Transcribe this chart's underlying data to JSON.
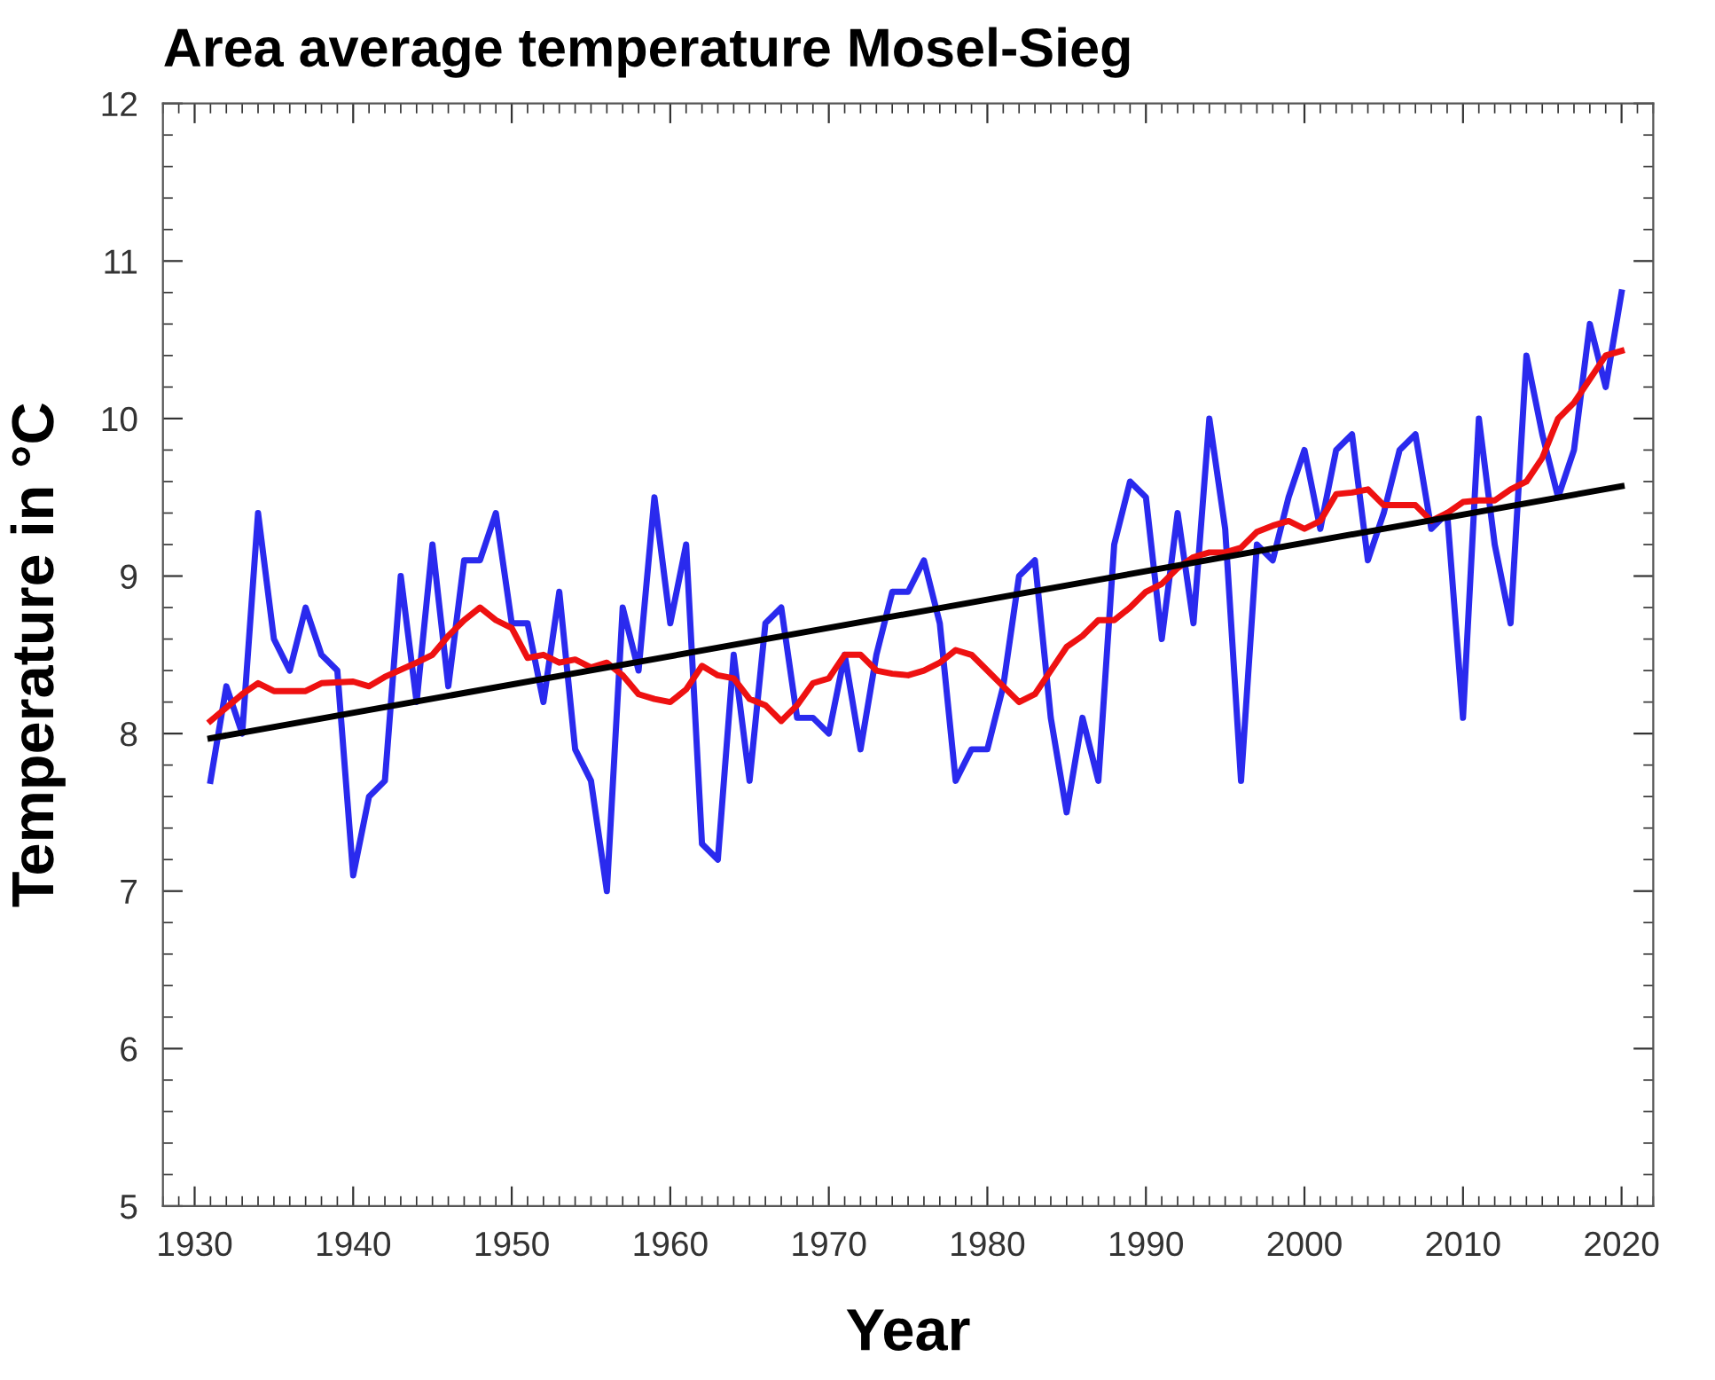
{
  "chart_data": {
    "type": "line",
    "title": "Area average temperature Mosel-Sieg",
    "xlabel": "Year",
    "ylabel": "Temperature in °C",
    "xlim": [
      1928,
      2022
    ],
    "xticks": [
      1930,
      1940,
      1950,
      1960,
      1970,
      1980,
      1990,
      2000,
      2010,
      2020
    ],
    "ylim": [
      5,
      12
    ],
    "yticks": [
      5,
      6,
      7,
      8,
      9,
      10,
      11,
      12
    ],
    "grid": false,
    "legend": false,
    "series": [
      {
        "color": "#2a2aee",
        "x": [
          1931,
          1932,
          1933,
          1934,
          1935,
          1936,
          1937,
          1938,
          1939,
          1940,
          1941,
          1942,
          1943,
          1944,
          1945,
          1946,
          1947,
          1948,
          1949,
          1950,
          1951,
          1952,
          1953,
          1954,
          1955,
          1956,
          1957,
          1958,
          1959,
          1960,
          1961,
          1962,
          1963,
          1964,
          1965,
          1966,
          1967,
          1968,
          1969,
          1970,
          1971,
          1972,
          1973,
          1974,
          1975,
          1976,
          1977,
          1978,
          1979,
          1980,
          1981,
          1982,
          1983,
          1984,
          1985,
          1986,
          1987,
          1988,
          1989,
          1990,
          1991,
          1992,
          1993,
          1994,
          1995,
          1996,
          1997,
          1998,
          1999,
          2000,
          2001,
          2002,
          2003,
          2004,
          2005,
          2006,
          2007,
          2008,
          2009,
          2010,
          2011,
          2012,
          2013,
          2014,
          2015,
          2016,
          2017,
          2018,
          2019,
          2020
        ],
        "values": [
          7.7,
          8.3,
          8.0,
          9.4,
          8.6,
          8.4,
          8.8,
          8.5,
          8.4,
          7.1,
          7.6,
          7.7,
          9.0,
          8.2,
          9.2,
          8.3,
          9.1,
          9.1,
          9.4,
          8.7,
          8.7,
          8.2,
          8.9,
          7.9,
          7.7,
          7.0,
          8.8,
          8.4,
          9.5,
          8.7,
          9.2,
          7.3,
          7.2,
          8.5,
          7.7,
          8.7,
          8.8,
          8.1,
          8.1,
          8.0,
          8.5,
          7.9,
          8.5,
          8.9,
          8.9,
          9.1,
          8.7,
          7.7,
          7.9,
          7.9,
          8.3,
          9.0,
          9.1,
          8.1,
          7.5,
          8.1,
          7.7,
          9.2,
          9.6,
          9.5,
          8.6,
          9.4,
          8.7,
          10.0,
          9.3,
          7.7,
          9.2,
          9.1,
          9.5,
          9.8,
          9.3,
          9.8,
          9.9,
          9.1,
          9.4,
          9.8,
          9.9,
          9.3,
          9.4,
          8.1,
          10.0,
          9.2,
          8.7,
          10.4,
          9.9,
          9.5,
          9.8,
          10.6,
          10.2,
          10.8
        ]
      },
      {
        "color": "#ee1111",
        "x": [
          1931,
          1933,
          1934,
          1935,
          1937,
          1938,
          1940,
          1941,
          1942,
          1944,
          1945,
          1946,
          1947,
          1948,
          1949,
          1950,
          1951,
          1952,
          1953,
          1954,
          1955,
          1956,
          1957,
          1958,
          1959,
          1960,
          1961,
          1962,
          1963,
          1964,
          1965,
          1966,
          1967,
          1968,
          1969,
          1970,
          1971,
          1972,
          1973,
          1974,
          1975,
          1976,
          1977,
          1978,
          1979,
          1980,
          1981,
          1982,
          1983,
          1984,
          1985,
          1986,
          1987,
          1988,
          1989,
          1990,
          1991,
          1992,
          1993,
          1994,
          1995,
          1996,
          1997,
          1998,
          1999,
          2000,
          2001,
          2002,
          2003,
          2004,
          2005,
          2006,
          2007,
          2008,
          2009,
          2010,
          2011,
          2012,
          2013,
          2014,
          2015,
          2016,
          2017,
          2018,
          2019,
          2020
        ],
        "values": [
          8.08,
          8.25,
          8.32,
          8.27,
          8.27,
          8.32,
          8.33,
          8.3,
          8.36,
          8.45,
          8.5,
          8.62,
          8.72,
          8.8,
          8.72,
          8.67,
          8.48,
          8.5,
          8.45,
          8.47,
          8.42,
          8.45,
          8.37,
          8.25,
          8.22,
          8.2,
          8.28,
          8.43,
          8.37,
          8.35,
          8.22,
          8.18,
          8.08,
          8.18,
          8.32,
          8.35,
          8.5,
          8.5,
          8.4,
          8.38,
          8.37,
          8.4,
          8.45,
          8.53,
          8.5,
          8.4,
          8.3,
          8.2,
          8.25,
          8.4,
          8.55,
          8.62,
          8.72,
          8.72,
          8.8,
          8.9,
          8.95,
          9.05,
          9.12,
          9.15,
          9.15,
          9.18,
          9.28,
          9.32,
          9.35,
          9.3,
          9.35,
          9.52,
          9.53,
          9.55,
          9.45,
          9.45,
          9.45,
          9.35,
          9.4,
          9.47,
          9.48,
          9.48,
          9.55,
          9.6,
          9.75,
          10.0,
          10.1,
          10.25,
          10.4,
          10.43
        ]
      },
      {
        "color": "#000000",
        "x": [
          1931,
          2020
        ],
        "values": [
          7.97,
          9.57
        ]
      }
    ]
  }
}
